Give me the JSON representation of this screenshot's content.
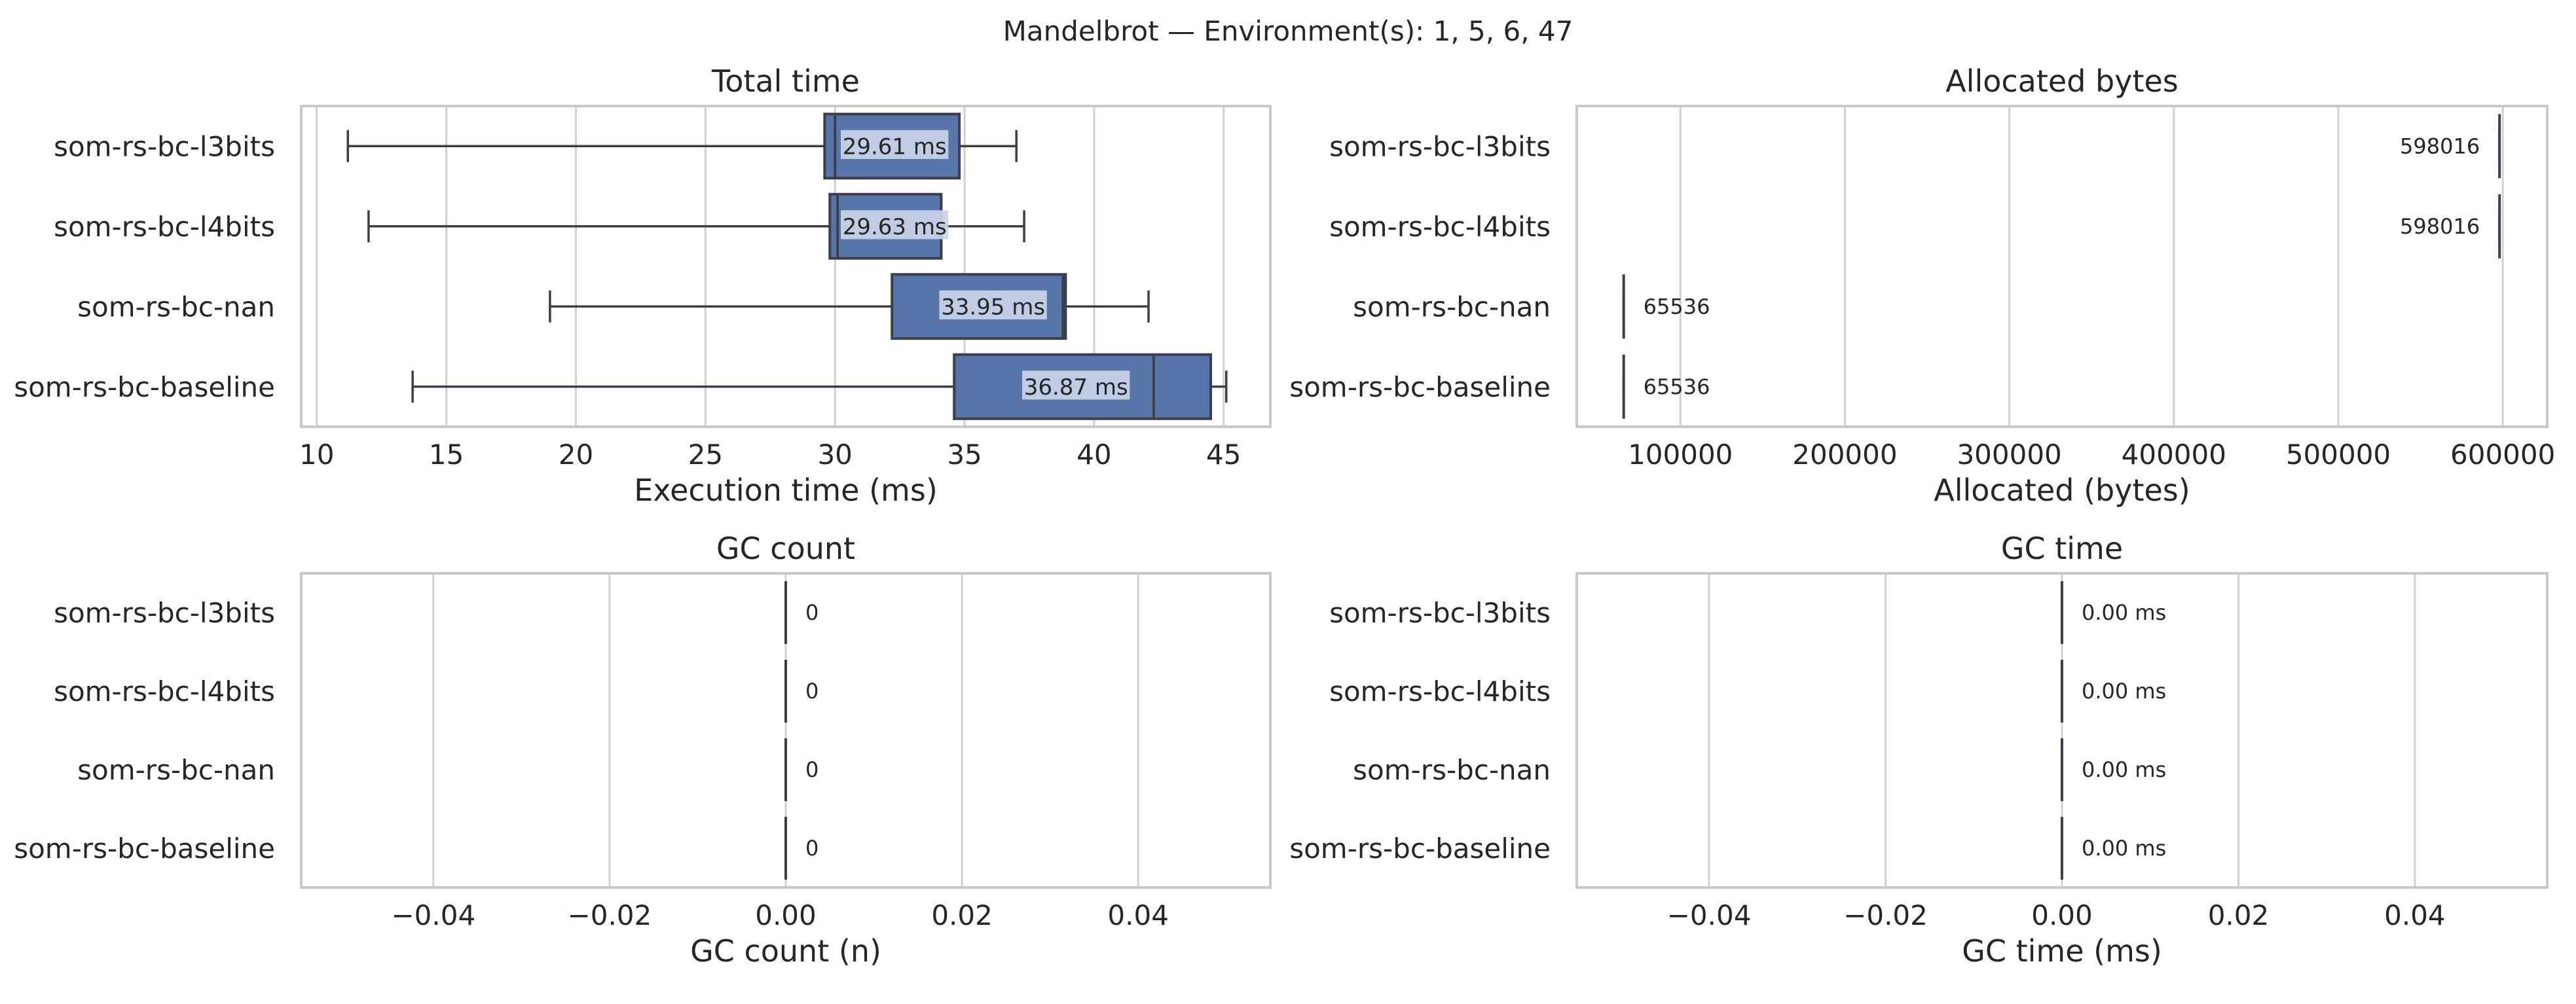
{
  "figure": {
    "suptitle": "Mandelbrot — Environment(s): 1, 5, 6, 47"
  },
  "colors": {
    "box_fill": "#5875a9",
    "box_edge": "#3b3f4c",
    "whisker": "#3b3f4c",
    "grid": "#d0d0d0",
    "frame": "#c8c8c8",
    "label_bg": "#c9d4e8",
    "text": "#262626"
  },
  "chart_data": [
    {
      "type": "box",
      "orientation": "horizontal",
      "title": "Total time",
      "xlabel": "Execution time (ms)",
      "xlim": [
        9.4,
        46.8
      ],
      "xticks": [
        10,
        15,
        20,
        25,
        30,
        35,
        40,
        45
      ],
      "xtick_labels": [
        "10",
        "15",
        "20",
        "25",
        "30",
        "35",
        "40",
        "45"
      ],
      "grid": true,
      "categories": [
        "som-rs-bc-l3bits",
        "som-rs-bc-l4bits",
        "som-rs-bc-nan",
        "som-rs-bc-baseline"
      ],
      "boxes": [
        {
          "whislo": 11.2,
          "q1": 29.6,
          "med": 30.0,
          "q3": 34.8,
          "whishi": 37.0
        },
        {
          "whislo": 12.0,
          "q1": 29.8,
          "med": 30.1,
          "q3": 34.1,
          "whishi": 37.3
        },
        {
          "whislo": 19.0,
          "q1": 32.2,
          "med": 38.8,
          "q3": 38.9,
          "whishi": 42.1
        },
        {
          "whislo": 13.7,
          "q1": 34.6,
          "med": 42.3,
          "q3": 44.5,
          "whishi": 45.1
        }
      ],
      "annotations": [
        "29.61 ms",
        "29.63 ms",
        "33.95 ms",
        "36.87 ms"
      ],
      "annotation_values": [
        32.3,
        32.3,
        36.1,
        39.3
      ]
    },
    {
      "type": "box",
      "orientation": "horizontal",
      "title": "Allocated bytes",
      "xlabel": "Allocated (bytes)",
      "xlim": [
        37000,
        627000
      ],
      "xticks": [
        100000,
        200000,
        300000,
        400000,
        500000,
        600000
      ],
      "xtick_labels": [
        "100000",
        "200000",
        "300000",
        "400000",
        "500000",
        "600000"
      ],
      "grid": true,
      "categories": [
        "som-rs-bc-l3bits",
        "som-rs-bc-l4bits",
        "som-rs-bc-nan",
        "som-rs-bc-baseline"
      ],
      "boxes": [
        {
          "whislo": 598016,
          "q1": 598016,
          "med": 598016,
          "q3": 598016,
          "whishi": 598016
        },
        {
          "whislo": 598016,
          "q1": 598016,
          "med": 598016,
          "q3": 598016,
          "whishi": 598016
        },
        {
          "whislo": 65536,
          "q1": 65536,
          "med": 65536,
          "q3": 65536,
          "whishi": 65536
        },
        {
          "whislo": 65536,
          "q1": 65536,
          "med": 65536,
          "q3": 65536,
          "whishi": 65536
        }
      ],
      "annotations": [
        "598016",
        "598016",
        "65536",
        "65536"
      ],
      "annotation_side": [
        "left",
        "left",
        "right",
        "right"
      ]
    },
    {
      "type": "box",
      "orientation": "horizontal",
      "title": "GC count",
      "xlabel": "GC count (n)",
      "xlim": [
        -0.055,
        0.055
      ],
      "xticks": [
        -0.04,
        -0.02,
        0.0,
        0.02,
        0.04
      ],
      "xtick_labels": [
        "−0.04",
        "−0.02",
        "0.00",
        "0.02",
        "0.04"
      ],
      "grid": true,
      "categories": [
        "som-rs-bc-l3bits",
        "som-rs-bc-l4bits",
        "som-rs-bc-nan",
        "som-rs-bc-baseline"
      ],
      "boxes": [
        {
          "whislo": 0,
          "q1": 0,
          "med": 0,
          "q3": 0,
          "whishi": 0
        },
        {
          "whislo": 0,
          "q1": 0,
          "med": 0,
          "q3": 0,
          "whishi": 0
        },
        {
          "whislo": 0,
          "q1": 0,
          "med": 0,
          "q3": 0,
          "whishi": 0
        },
        {
          "whislo": 0,
          "q1": 0,
          "med": 0,
          "q3": 0,
          "whishi": 0
        }
      ],
      "annotations": [
        "0",
        "0",
        "0",
        "0"
      ],
      "annotation_side": [
        "right",
        "right",
        "right",
        "right"
      ]
    },
    {
      "type": "box",
      "orientation": "horizontal",
      "title": "GC time",
      "xlabel": "GC time (ms)",
      "xlim": [
        -0.055,
        0.055
      ],
      "xticks": [
        -0.04,
        -0.02,
        0.0,
        0.02,
        0.04
      ],
      "xtick_labels": [
        "−0.04",
        "−0.02",
        "0.00",
        "0.02",
        "0.04"
      ],
      "grid": true,
      "categories": [
        "som-rs-bc-l3bits",
        "som-rs-bc-l4bits",
        "som-rs-bc-nan",
        "som-rs-bc-baseline"
      ],
      "boxes": [
        {
          "whislo": 0,
          "q1": 0,
          "med": 0,
          "q3": 0,
          "whishi": 0
        },
        {
          "whislo": 0,
          "q1": 0,
          "med": 0,
          "q3": 0,
          "whishi": 0
        },
        {
          "whislo": 0,
          "q1": 0,
          "med": 0,
          "q3": 0,
          "whishi": 0
        },
        {
          "whislo": 0,
          "q1": 0,
          "med": 0,
          "q3": 0,
          "whishi": 0
        }
      ],
      "annotations": [
        "0.00 ms",
        "0.00 ms",
        "0.00 ms",
        "0.00 ms"
      ],
      "annotation_side": [
        "right",
        "right",
        "right",
        "right"
      ]
    }
  ]
}
